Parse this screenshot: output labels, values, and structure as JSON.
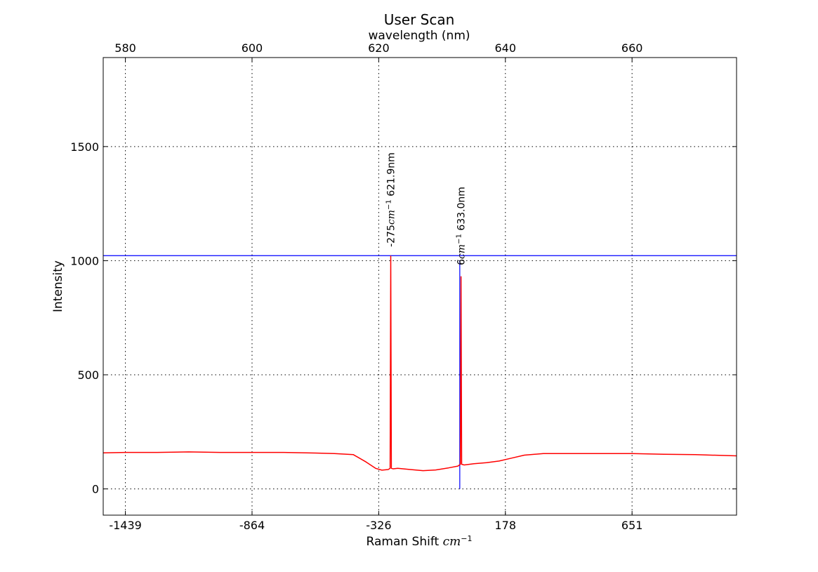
{
  "chart_data": {
    "type": "line",
    "title": "User Scan",
    "xlabel": "Raman Shift",
    "xlabel_unit_main": "cm",
    "xlabel_unit_sup": "−1",
    "x2label": "wavelength (nm)",
    "ylabel": "Intensity",
    "xlim_nm": [
      576.5,
      676.5
    ],
    "ylim": [
      -115,
      1890
    ],
    "grid": true,
    "x_ticks_bottom": [
      {
        "nm": 580,
        "label": "-1439"
      },
      {
        "nm": 600,
        "label": "-864"
      },
      {
        "nm": 620,
        "label": "-326"
      },
      {
        "nm": 640,
        "label": "178"
      },
      {
        "nm": 660,
        "label": "651"
      }
    ],
    "x_ticks_top": [
      580,
      600,
      620,
      640,
      660
    ],
    "y_ticks": [
      0,
      500,
      1000,
      1500
    ],
    "series": [
      {
        "color": "#ff0000",
        "x_nm": [
          576.5,
          580,
          585,
          590,
          595,
          600,
          605,
          610,
          613,
          616,
          618,
          619.5,
          620.5,
          621.5,
          621.8,
          621.9,
          622.0,
          622.3,
          623,
          625,
          627,
          629,
          631,
          632.5,
          632.9,
          633.0,
          633.1,
          633.5,
          635,
          637,
          639,
          641,
          643,
          646,
          650,
          655,
          660,
          665,
          670,
          676.5
        ],
        "y": [
          158,
          160,
          160,
          162,
          160,
          160,
          160,
          157,
          155,
          150,
          118,
          90,
          82,
          85,
          90,
          1020,
          90,
          88,
          90,
          85,
          80,
          83,
          92,
          100,
          108,
          930,
          108,
          105,
          110,
          115,
          122,
          135,
          148,
          155,
          155,
          155,
          155,
          152,
          150,
          145
        ]
      }
    ],
    "reference_line": {
      "color": "#0000ff",
      "y": 1022
    },
    "marker_line": {
      "color": "#0000ff",
      "x_nm": 632.8,
      "y_from": 0,
      "y_to": 1000
    },
    "annotations": [
      {
        "x_nm": 621.9,
        "y": 1060,
        "shift": "-275",
        "unit_main": "cm",
        "unit_sup": "−1",
        "wavelength": "621.9nm"
      },
      {
        "x_nm": 633.0,
        "y": 980,
        "shift": "6",
        "unit_main": "cm",
        "unit_sup": "−1",
        "wavelength": "633.0nm"
      }
    ]
  }
}
